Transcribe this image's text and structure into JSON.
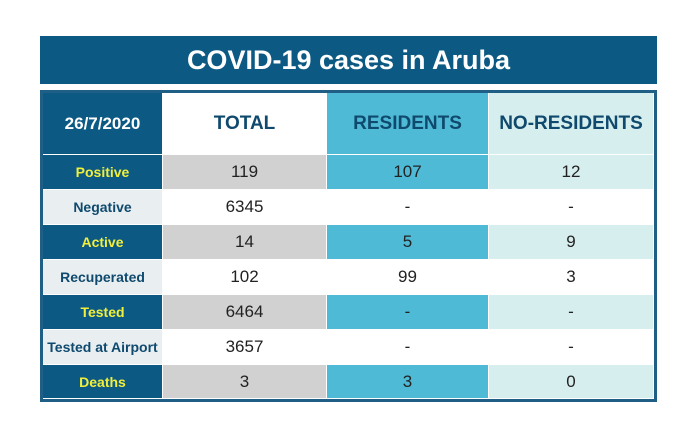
{
  "title": "COVID-19 cases in Aruba",
  "header": {
    "date": "26/7/2020",
    "total": "TOTAL",
    "residents": "RESIDENTS",
    "no_residents": "NO-RESIDENTS"
  },
  "rows": [
    {
      "label": "Positive",
      "total": "119",
      "residents": "107",
      "no_residents": "12"
    },
    {
      "label": "Negative",
      "total": "6345",
      "residents": "-",
      "no_residents": "-"
    },
    {
      "label": "Active",
      "total": "14",
      "residents": "5",
      "no_residents": "9"
    },
    {
      "label": "Recuperated",
      "total": "102",
      "residents": "99",
      "no_residents": "3"
    },
    {
      "label": "Tested",
      "total": "6464",
      "residents": "-",
      "no_residents": "-"
    },
    {
      "label": "Tested at Airport",
      "total": "3657",
      "residents": "-",
      "no_residents": "-"
    },
    {
      "label": "Deaths",
      "total": "3",
      "residents": "3",
      "no_residents": "0"
    }
  ],
  "colors": {
    "title_background": "#0c5a83",
    "header_residents": "#4fbad6",
    "header_no_residents": "#d6eeee",
    "label_text_highlight": "#f2ef3a"
  }
}
